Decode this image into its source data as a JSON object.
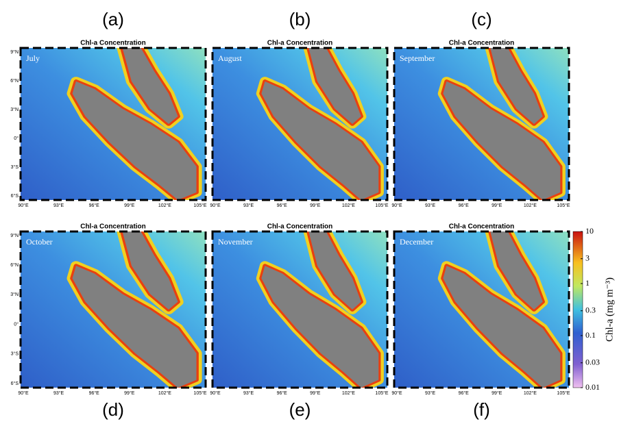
{
  "panels": [
    {
      "label": "(a)",
      "title": "Chl-a Concentration",
      "month": "July"
    },
    {
      "label": "(b)",
      "title": "Chl-a Concentration",
      "month": "August"
    },
    {
      "label": "(c)",
      "title": "Chl-a Concentration",
      "month": "September"
    },
    {
      "label": "(d)",
      "title": "Chl-a Concentration",
      "month": "October"
    },
    {
      "label": "(e)",
      "title": "Chl-a Concentration",
      "month": "November"
    },
    {
      "label": "(f)",
      "title": "Chl-a Concentration",
      "month": "December"
    }
  ],
  "lon_ticks": [
    "90°E",
    "93°E",
    "96°E",
    "99°E",
    "102°E",
    "105°E"
  ],
  "lat_ticks": [
    "9°N",
    "6°N",
    "3°N",
    "0°",
    "3°S",
    "6°S"
  ],
  "colorbar": {
    "label": "Chl-a (mg m⁻³)",
    "ticks": [
      10,
      3,
      1,
      0.3,
      0.1,
      0.03,
      0.01
    ]
  }
}
